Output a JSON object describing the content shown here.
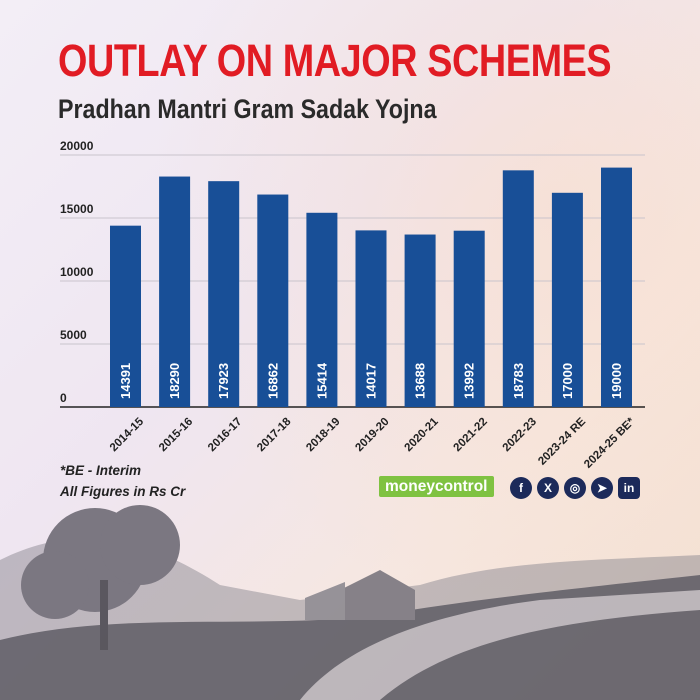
{
  "header": {
    "title": "OUTLAY ON MAJOR SCHEMES",
    "subtitle": "Pradhan Mantri Gram Sadak Yojna"
  },
  "footer": {
    "note1": "*BE - Interim",
    "note2": "All Figures in Rs Cr",
    "logo_part1": "money",
    "logo_part2": "control",
    "social_icons": [
      "facebook-icon",
      "x-twitter-icon",
      "instagram-icon",
      "telegram-icon",
      "linkedin-icon"
    ],
    "social_labels": [
      "f",
      "X",
      "◎",
      "➤",
      "in"
    ]
  },
  "colors": {
    "title": "#e11c24",
    "bar": "#184f97",
    "bar_label": "#ffffff",
    "logo_bg": "#7fc241",
    "icon_bg": "#1c2a5a"
  },
  "chart_data": {
    "type": "bar",
    "title": "",
    "xlabel": "",
    "ylabel": "",
    "categories": [
      "2014-15",
      "2015-16",
      "2016-17",
      "2017-18",
      "2018-19",
      "2019-20",
      "2020-21",
      "2021-22",
      "2022-23",
      "2023-24 RE",
      "2024-25 BE*"
    ],
    "values": [
      14391,
      18290,
      17923,
      16862,
      15414,
      14017,
      13688,
      13992,
      18783,
      17000,
      19000
    ],
    "ylim": [
      0,
      20000
    ],
    "yticks": [
      0,
      5000,
      10000,
      15000,
      20000
    ],
    "grid": true,
    "legend": "none"
  }
}
